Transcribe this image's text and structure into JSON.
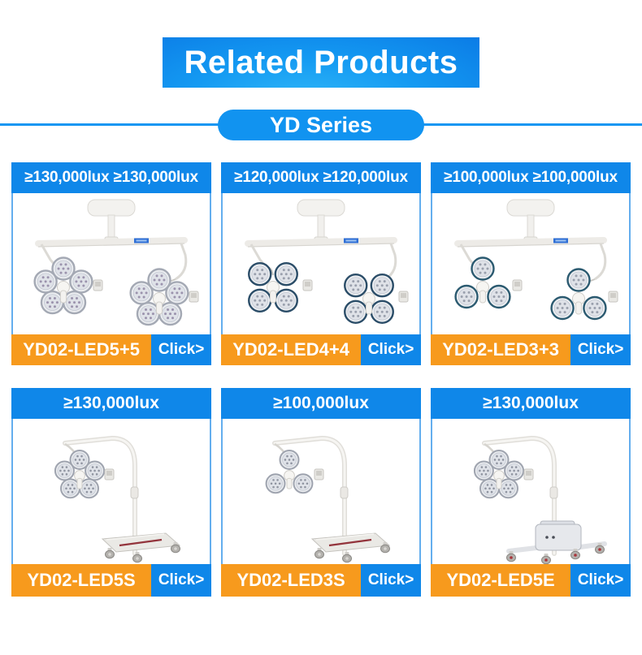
{
  "header": {
    "title": "Related Products",
    "series_label": "YD Series"
  },
  "colors": {
    "accent_blue": "#0f87e9",
    "pill_blue": "#1193f0",
    "banner_blue_light": "#2fb7f8",
    "banner_blue_dark": "#0b7ce6",
    "model_orange": "#f79a1d",
    "card_border_blue": "#64aeee",
    "text_white": "#ffffff"
  },
  "products": [
    {
      "lux": "≥130,000lux ≥130,000lux",
      "model": "YD02-LED5+5",
      "click_label": "Click>",
      "illustration": {
        "type": "ceiling-dual",
        "modules": 5,
        "rim": "#a4a9b4",
        "led": "#9b93ad"
      }
    },
    {
      "lux": "≥120,000lux ≥120,000lux",
      "model": "YD02-LED4+4",
      "click_label": "Click>",
      "illustration": {
        "type": "ceiling-dual",
        "modules": 4,
        "rim": "#2b4d68",
        "led": "#9aa0ad"
      }
    },
    {
      "lux": "≥100,000lux ≥100,000lux",
      "model": "YD02-LED3+3",
      "click_label": "Click>",
      "illustration": {
        "type": "ceiling-dual",
        "modules": 3,
        "rim": "#2b5a70",
        "led": "#9aa0ad"
      }
    },
    {
      "lux": "≥130,000lux",
      "model": "YD02-LED5S",
      "click_label": "Click>",
      "illustration": {
        "type": "mobile-stand",
        "modules": 5,
        "rim": "#9fa4af",
        "led": "#8f94a0"
      }
    },
    {
      "lux": "≥100,000lux",
      "model": "YD02-LED3S",
      "click_label": "Click>",
      "illustration": {
        "type": "mobile-stand",
        "modules": 3,
        "rim": "#9fa4af",
        "led": "#8f94a0"
      }
    },
    {
      "lux": "≥130,000lux",
      "model": "YD02-LED5E",
      "click_label": "Click>",
      "illustration": {
        "type": "mobile-battery",
        "modules": 5,
        "rim": "#9fa4af",
        "led": "#8f94a0"
      }
    }
  ]
}
